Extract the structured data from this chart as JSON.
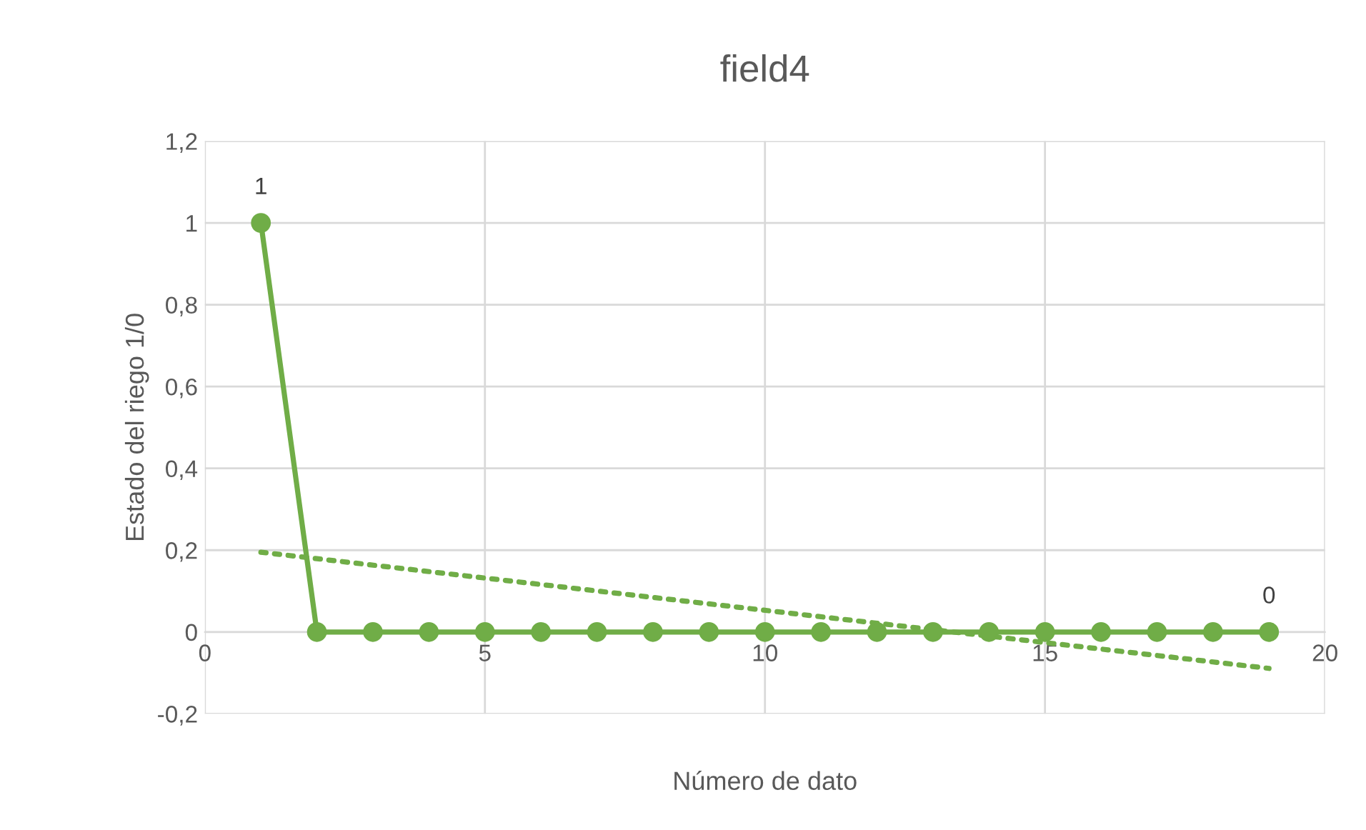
{
  "chart_data": {
    "type": "line",
    "title": "field4",
    "xlabel": "Número de dato",
    "ylabel": "Estado del riego 1/0",
    "x": [
      1,
      2,
      3,
      4,
      5,
      6,
      7,
      8,
      9,
      10,
      11,
      12,
      13,
      14,
      15,
      16,
      17,
      18,
      19
    ],
    "series": [
      {
        "color": "#70ad47",
        "values": [
          1,
          0,
          0,
          0,
          0,
          0,
          0,
          0,
          0,
          0,
          0,
          0,
          0,
          0,
          0,
          0,
          0,
          0,
          0
        ],
        "marker": "circle",
        "line_style": "solid",
        "value_labels": [
          "1",
          null,
          null,
          null,
          null,
          null,
          null,
          null,
          null,
          null,
          null,
          null,
          null,
          null,
          null,
          null,
          null,
          null,
          "0"
        ]
      },
      {
        "type": "line",
        "color": "#70ad47",
        "x": [
          1,
          19
        ],
        "values": [
          0.195,
          -0.089
        ],
        "marker": "none",
        "line_style": "dotted"
      }
    ],
    "xlim": [
      0,
      20
    ],
    "xticks": [
      0,
      5,
      10,
      15,
      20
    ],
    "ylim": [
      -0.2,
      1.2
    ],
    "yticks": [
      {
        "value": -0.2,
        "label": "-0,2"
      },
      0,
      {
        "value": 0.2,
        "label": "0,2"
      },
      {
        "value": 0.4,
        "label": "0,4"
      },
      {
        "value": 0.6,
        "label": "0,6"
      },
      {
        "value": 0.8,
        "label": "0,8"
      },
      1,
      {
        "value": 1.2,
        "label": "1,2"
      }
    ],
    "grid": true,
    "legend": false
  }
}
